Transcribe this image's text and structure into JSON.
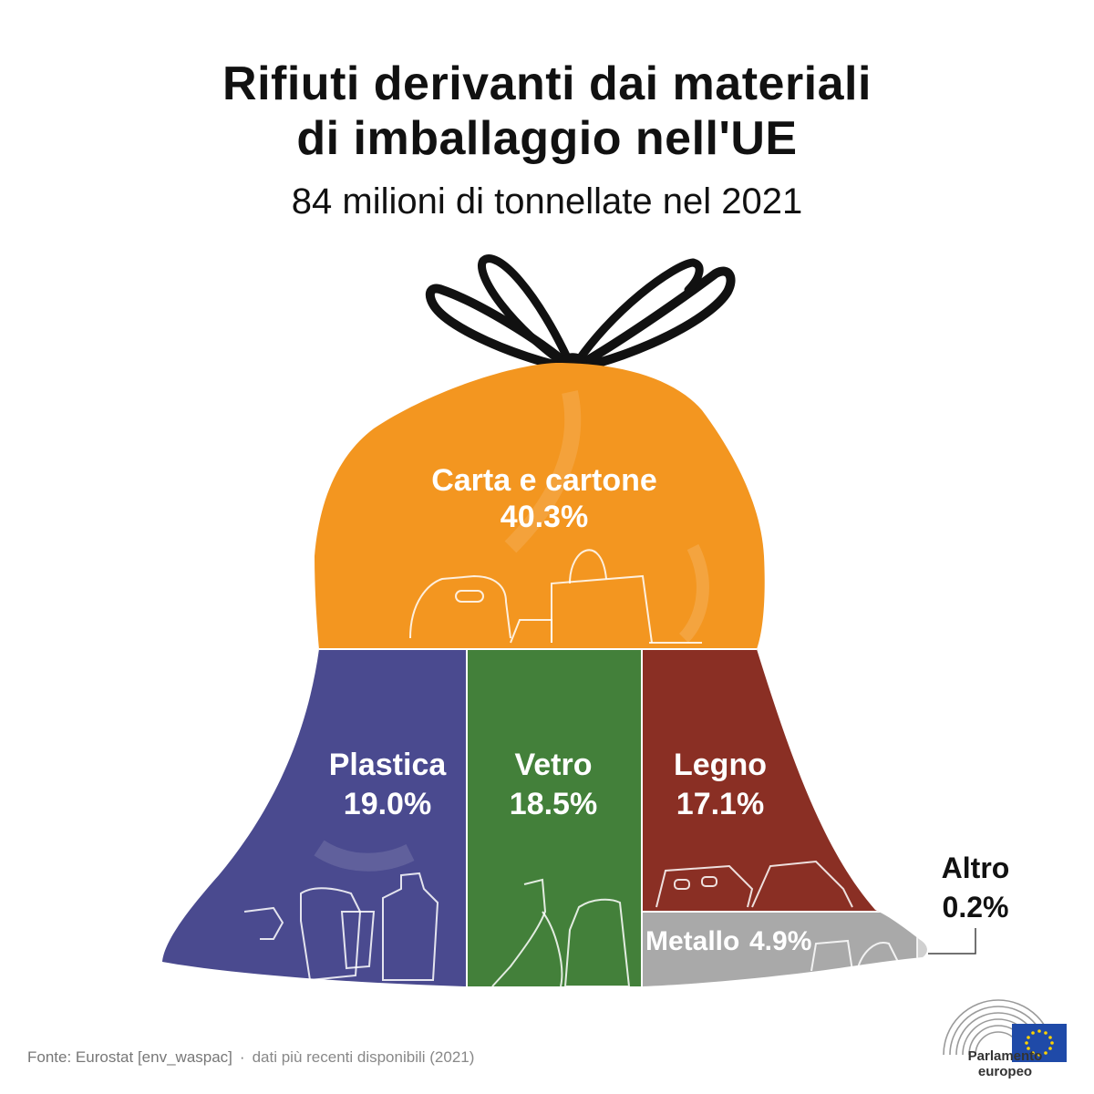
{
  "title_line1": "Rifiuti derivanti dai materiali",
  "title_line2": "di imballaggio nell'UE",
  "subtitle": "84 milioni di tonnellate nel 2021",
  "chart_data": {
    "type": "treemap",
    "title": "Rifiuti derivanti dai materiali di imballaggio nell'UE",
    "subtitle": "84 milioni di tonnellate nel 2021",
    "segments": [
      {
        "name": "Carta e cartone",
        "value": 40.3,
        "label": "40.3%",
        "color": "#f39620"
      },
      {
        "name": "Plastica",
        "value": 19.0,
        "label": "19.0%",
        "color": "#4a4a8f"
      },
      {
        "name": "Vetro",
        "value": 18.5,
        "label": "18.5%",
        "color": "#43803a"
      },
      {
        "name": "Legno",
        "value": 17.1,
        "label": "17.1%",
        "color": "#8a2f24"
      },
      {
        "name": "Metallo",
        "value": 4.9,
        "label": "4.9%",
        "color": "#a9a9a9"
      },
      {
        "name": "Altro",
        "value": 0.2,
        "label": "0.2%",
        "color": "#d0d0d0"
      }
    ]
  },
  "footer": {
    "source": "Fonte: Eurostat [env_waspac]",
    "separator": "·",
    "note": "dati più recenti disponibili (2021)"
  },
  "logo": {
    "name": "Parlamento europeo"
  }
}
